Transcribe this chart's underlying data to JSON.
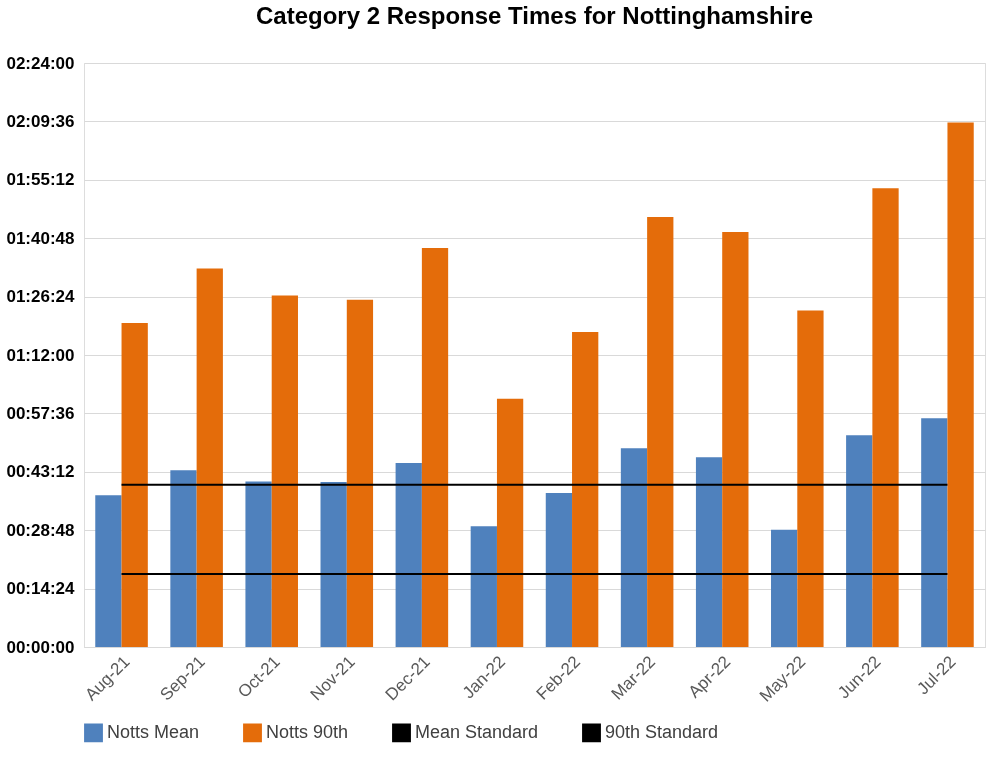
{
  "chart_data": {
    "type": "bar",
    "title": "Category 2 Response Times for Nottinghamshire",
    "categories": [
      "Aug-21",
      "Sep-21",
      "Oct-21",
      "Nov-21",
      "Dec-21",
      "Jan-22",
      "Feb-22",
      "Mar-22",
      "Apr-22",
      "May-22",
      "Jun-22",
      "Jul-22"
    ],
    "series": [
      {
        "name": "Notts Mean",
        "color": "#4f81bd",
        "values": [
          37.4,
          43.6,
          40.8,
          40.7,
          45.4,
          29.8,
          38.0,
          49.0,
          46.8,
          28.9,
          52.2,
          56.4
        ]
      },
      {
        "name": "Notts 90th",
        "color": "#e46c0a",
        "values": [
          79.9,
          93.3,
          86.7,
          85.6,
          98.4,
          61.2,
          77.7,
          106.0,
          102.3,
          83.0,
          113.1,
          129.3
        ]
      },
      {
        "name": "Mean Standard",
        "type": "line",
        "color": "#000000",
        "values": [
          18,
          18,
          18,
          18,
          18,
          18,
          18,
          18,
          18,
          18,
          18,
          18
        ]
      },
      {
        "name": "90th Standard",
        "type": "line",
        "color": "#000000",
        "values": [
          40,
          40,
          40,
          40,
          40,
          40,
          40,
          40,
          40,
          40,
          40,
          40
        ]
      }
    ],
    "ylim": [
      0,
      144
    ],
    "yticks": [
      {
        "value": 0,
        "label": "00:00:00"
      },
      {
        "value": 14.4,
        "label": "00:14:24"
      },
      {
        "value": 28.8,
        "label": "00:28:48"
      },
      {
        "value": 43.2,
        "label": "00:43:12"
      },
      {
        "value": 57.6,
        "label": "00:57:36"
      },
      {
        "value": 72,
        "label": "01:12:00"
      },
      {
        "value": 86.4,
        "label": "01:26:24"
      },
      {
        "value": 100.8,
        "label": "01:40:48"
      },
      {
        "value": 115.2,
        "label": "01:55:12"
      },
      {
        "value": 129.6,
        "label": "02:09:36"
      },
      {
        "value": 144,
        "label": "02:24:00"
      }
    ],
    "grid": "y",
    "legend": "bottom",
    "marker": "none",
    "line_style": "solid"
  }
}
